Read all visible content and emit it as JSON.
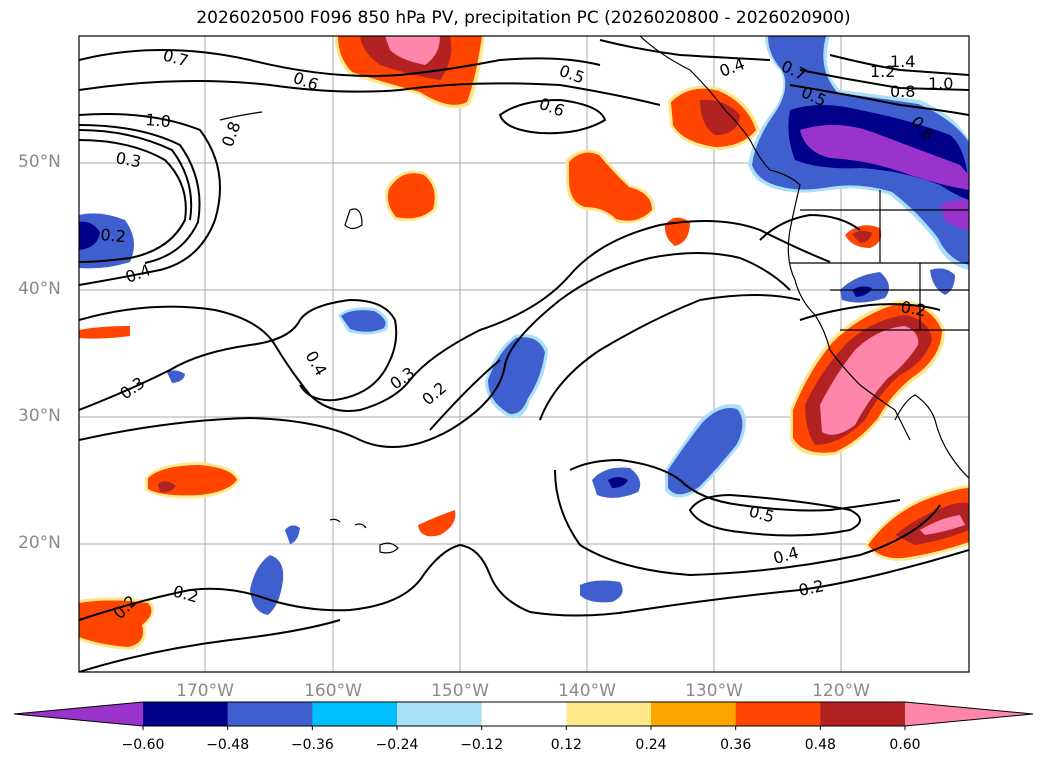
{
  "title": "2026020500 F096 850 hPa PV, precipitation PC (2026020800 - 2026020900)",
  "latitude_labels": [
    "50°N",
    "40°N",
    "30°N",
    "20°N"
  ],
  "longitude_labels": [
    "170°W",
    "160°W",
    "150°W",
    "140°W",
    "130°W",
    "120°W"
  ],
  "contour_labels": [
    "0.7",
    "0.6",
    "0.8",
    "1.0",
    "0.3",
    "0.2",
    "0.4",
    "0.3",
    "0.4",
    "0.3",
    "0.2",
    "0.5",
    "0.6",
    "0.4",
    "1.4",
    "1.2",
    "1.0",
    "0.8",
    "0.7",
    "0.5",
    "0.6",
    "0.2",
    "0.5",
    "0.4",
    "0.2",
    "0.2",
    "0.2"
  ],
  "colorbar": {
    "ticks": [
      "−0.60",
      "−0.48",
      "−0.36",
      "−0.24",
      "−0.12",
      "0.12",
      "0.24",
      "0.36",
      "0.48",
      "0.60"
    ],
    "colors": [
      "#9933cc",
      "#00008b",
      "#3f5fcf",
      "#00bfff",
      "#aadff8",
      "#ffffff",
      "#ffe88a",
      "#ffa500",
      "#ff4500",
      "#b22222",
      "#ff85aa",
      "#ff85aa"
    ]
  },
  "colors": {
    "positive_strong": "#ff85aa",
    "positive_mid": "#b22222",
    "positive_low": "#ff4500",
    "negative_strong": "#9933cc",
    "negative_mid": "#00008b",
    "negative_low": "#3f5fcf",
    "contour": "#000000",
    "grid": "#aaaaaa"
  }
}
